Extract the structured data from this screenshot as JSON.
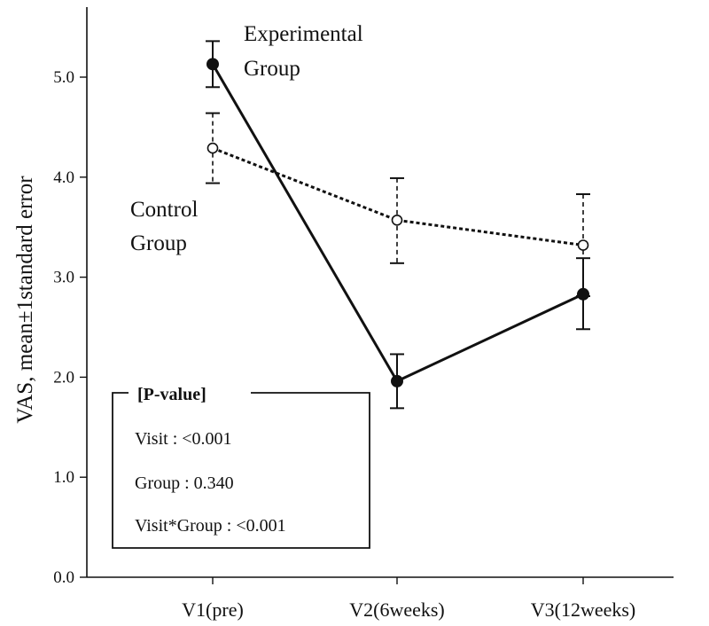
{
  "chart_data": {
    "type": "line",
    "title": "",
    "xlabel": "",
    "ylabel": "VAS, mean±1standard error",
    "categories": [
      "V1(pre)",
      "V2(6weeks)",
      "V3(12weeks)"
    ],
    "ylim": [
      0,
      5.5
    ],
    "yticks": [
      "0.0",
      "1.0",
      "2.0",
      "3.0",
      "4.0",
      "5.0"
    ],
    "series": [
      {
        "name": "Experimental Group",
        "label_lines": [
          "Experimental",
          "Group"
        ],
        "style": "solid",
        "marker": "filled-circle",
        "values": [
          5.13,
          1.96,
          2.83
        ],
        "error_low": [
          4.9,
          1.69,
          2.48
        ],
        "error_high": [
          5.36,
          2.23,
          3.19
        ]
      },
      {
        "name": "Control Group",
        "label_lines": [
          "Control",
          "Group"
        ],
        "style": "dotted",
        "marker": "open-circle",
        "values": [
          4.29,
          3.57,
          3.32
        ],
        "error_low": [
          3.94,
          3.14,
          2.81
        ],
        "error_high": [
          4.64,
          3.99,
          3.83
        ]
      }
    ],
    "annotation": {
      "title": "[P-value]",
      "lines": [
        "Visit : <0.001",
        "Group : 0.340",
        "Visit*Group : <0.001"
      ]
    }
  },
  "colors": {
    "ink": "#111111",
    "background": "#ffffff"
  }
}
